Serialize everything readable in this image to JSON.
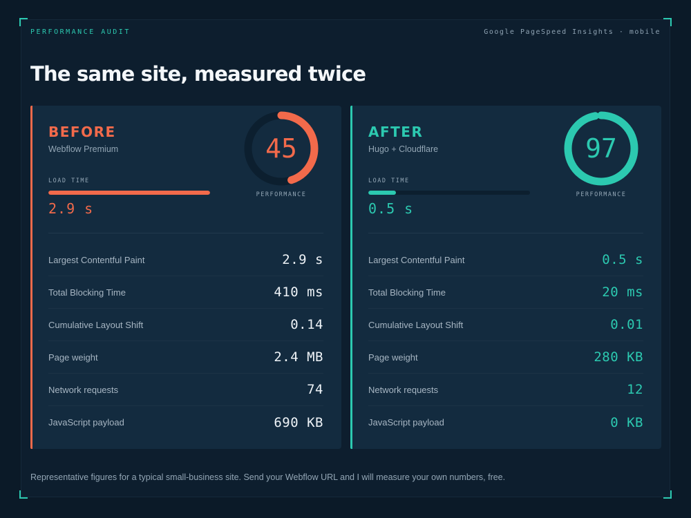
{
  "header": {
    "eyebrow": "PERFORMANCE AUDIT",
    "source": "Google PageSpeed Insights · mobile",
    "title": "The same site, measured twice"
  },
  "colors": {
    "before_accent": "#f26a4b",
    "after_accent": "#2cc9b0",
    "background": "#0b1a28",
    "card": "#132b3f"
  },
  "before": {
    "label": "BEFORE",
    "platform": "Webflow Premium",
    "load_label": "LOAD TIME",
    "load_value": "2.9 s",
    "load_fraction": 1.0,
    "score": "45",
    "score_value": 45,
    "score_caption": "PERFORMANCE",
    "metrics": [
      {
        "name": "Largest Contentful Paint",
        "value": "2.9 s"
      },
      {
        "name": "Total Blocking Time",
        "value": "410 ms"
      },
      {
        "name": "Cumulative Layout Shift",
        "value": "0.14"
      },
      {
        "name": "Page weight",
        "value": "2.4 MB"
      },
      {
        "name": "Network requests",
        "value": "74"
      },
      {
        "name": "JavaScript payload",
        "value": "690 KB"
      }
    ]
  },
  "after": {
    "label": "AFTER",
    "platform": "Hugo + Cloudflare",
    "load_label": "LOAD TIME",
    "load_value": "0.5 s",
    "load_fraction": 0.17,
    "score": "97",
    "score_value": 97,
    "score_caption": "PERFORMANCE",
    "metrics": [
      {
        "name": "Largest Contentful Paint",
        "value": "0.5 s"
      },
      {
        "name": "Total Blocking Time",
        "value": "20 ms"
      },
      {
        "name": "Cumulative Layout Shift",
        "value": "0.01"
      },
      {
        "name": "Page weight",
        "value": "280 KB"
      },
      {
        "name": "Network requests",
        "value": "12"
      },
      {
        "name": "JavaScript payload",
        "value": "0 KB"
      }
    ]
  },
  "footnote": "Representative figures for a typical small-business site. Send your Webflow URL and I will measure your own numbers, free."
}
